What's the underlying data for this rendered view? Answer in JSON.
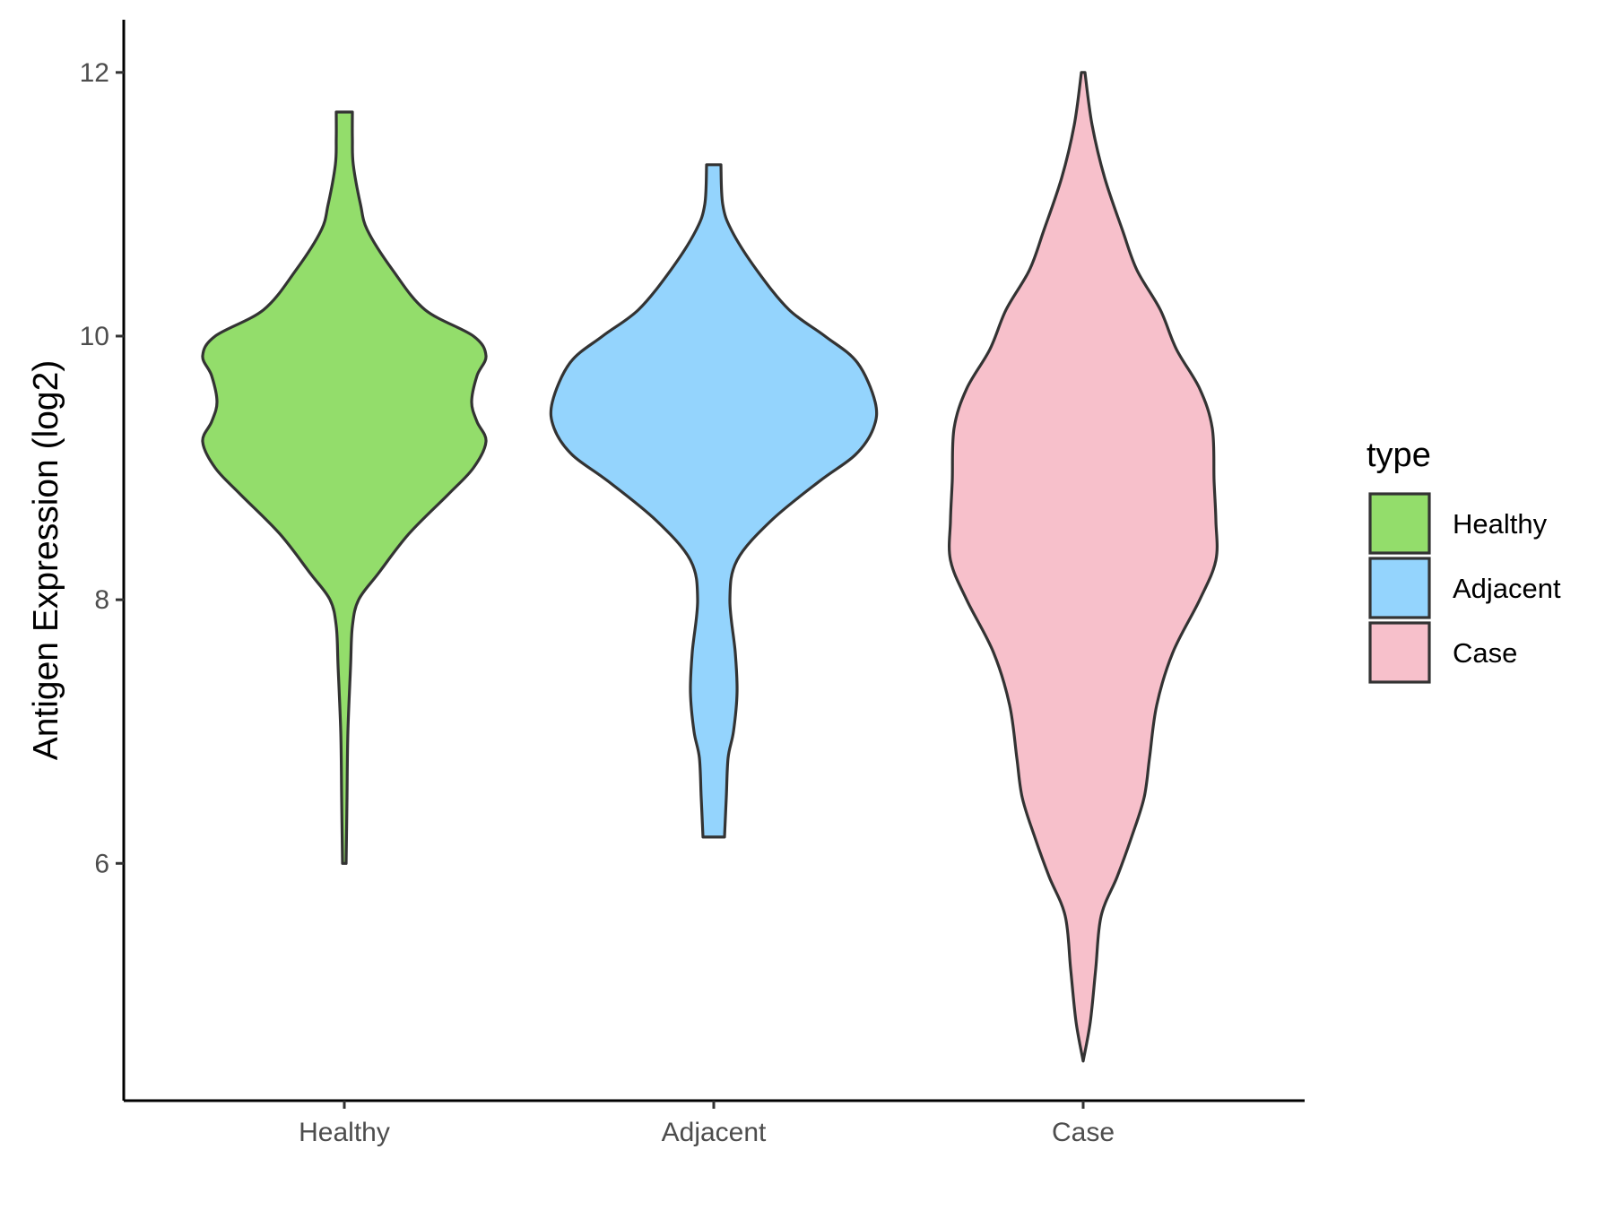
{
  "chart_data": {
    "type": "violin",
    "ylabel": "Antigen Expression (log2)",
    "xlabel": "",
    "ylim": [
      4.2,
      12.4
    ],
    "yticks": [
      6,
      8,
      10,
      12
    ],
    "grid": false,
    "categories": [
      "Healthy",
      "Adjacent",
      "Case"
    ],
    "legend": {
      "title": "type",
      "placement": "right",
      "entries": [
        "Healthy",
        "Adjacent",
        "Case"
      ]
    },
    "outline_color": "#333333",
    "series": [
      {
        "category": "Healthy",
        "color": "#93dd6b",
        "min": 6.0,
        "max": 11.7,
        "profile": [
          [
            6.0,
            0.01
          ],
          [
            6.5,
            0.015
          ],
          [
            7.0,
            0.02
          ],
          [
            7.5,
            0.035
          ],
          [
            7.8,
            0.045
          ],
          [
            8.0,
            0.08
          ],
          [
            8.2,
            0.19
          ],
          [
            8.5,
            0.36
          ],
          [
            8.8,
            0.58
          ],
          [
            9.0,
            0.72
          ],
          [
            9.2,
            0.79
          ],
          [
            9.35,
            0.74
          ],
          [
            9.5,
            0.71
          ],
          [
            9.7,
            0.74
          ],
          [
            9.85,
            0.79
          ],
          [
            10.0,
            0.72
          ],
          [
            10.2,
            0.45
          ],
          [
            10.5,
            0.27
          ],
          [
            10.8,
            0.13
          ],
          [
            11.0,
            0.09
          ],
          [
            11.3,
            0.05
          ],
          [
            11.5,
            0.045
          ],
          [
            11.7,
            0.045
          ]
        ]
      },
      {
        "category": "Adjacent",
        "color": "#94d4fd",
        "min": 6.2,
        "max": 11.3,
        "profile": [
          [
            6.2,
            0.06
          ],
          [
            6.5,
            0.07
          ],
          [
            6.8,
            0.08
          ],
          [
            7.0,
            0.11
          ],
          [
            7.3,
            0.13
          ],
          [
            7.6,
            0.12
          ],
          [
            8.0,
            0.09
          ],
          [
            8.3,
            0.13
          ],
          [
            8.6,
            0.32
          ],
          [
            8.9,
            0.59
          ],
          [
            9.1,
            0.79
          ],
          [
            9.3,
            0.89
          ],
          [
            9.5,
            0.9
          ],
          [
            9.8,
            0.8
          ],
          [
            10.0,
            0.62
          ],
          [
            10.2,
            0.42
          ],
          [
            10.5,
            0.24
          ],
          [
            10.8,
            0.1
          ],
          [
            11.0,
            0.05
          ],
          [
            11.3,
            0.04
          ]
        ]
      },
      {
        "category": "Case",
        "color": "#f7c0cb",
        "min": 4.5,
        "max": 12.0,
        "profile": [
          [
            4.5,
            0.0
          ],
          [
            4.8,
            0.04
          ],
          [
            5.2,
            0.07
          ],
          [
            5.6,
            0.1
          ],
          [
            5.9,
            0.19
          ],
          [
            6.2,
            0.27
          ],
          [
            6.5,
            0.34
          ],
          [
            6.8,
            0.37
          ],
          [
            7.2,
            0.41
          ],
          [
            7.6,
            0.5
          ],
          [
            8.0,
            0.65
          ],
          [
            8.3,
            0.74
          ],
          [
            8.6,
            0.74
          ],
          [
            8.9,
            0.73
          ],
          [
            9.3,
            0.72
          ],
          [
            9.6,
            0.65
          ],
          [
            9.9,
            0.52
          ],
          [
            10.2,
            0.43
          ],
          [
            10.5,
            0.3
          ],
          [
            10.8,
            0.22
          ],
          [
            11.2,
            0.12
          ],
          [
            11.6,
            0.05
          ],
          [
            12.0,
            0.01
          ]
        ]
      }
    ]
  }
}
